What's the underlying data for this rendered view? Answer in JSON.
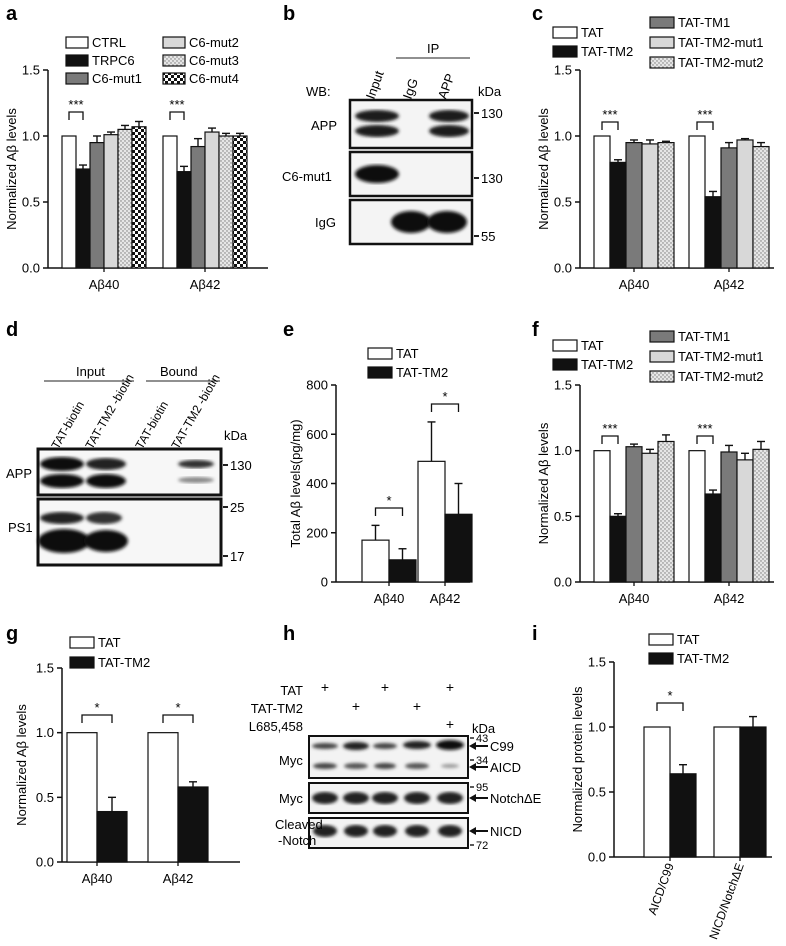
{
  "panels": {
    "a": {
      "letter": "a",
      "ylabel": "Normalized Aβ levels",
      "yticks": [
        "0.0",
        "0.5",
        "1.0",
        "1.5"
      ],
      "ylim": [
        0,
        1.5
      ],
      "groups": [
        "Aβ40",
        "Aβ42"
      ],
      "legend": [
        {
          "label": "CTRL",
          "fill": "white"
        },
        {
          "label": "TRPC6",
          "fill": "black"
        },
        {
          "label": "C6-mut1",
          "fill": "darkgray"
        },
        {
          "label": "C6-mut2",
          "fill": "lightgray"
        },
        {
          "label": "C6-mut3",
          "fill": "dots"
        },
        {
          "label": "C6-mut4",
          "fill": "checker"
        }
      ],
      "sig": [
        "***",
        "***"
      ]
    },
    "b": {
      "letter": "b",
      "ip_label": "IP",
      "wb_label": "WB:",
      "lanes": [
        "Input",
        "IgG",
        "APP"
      ],
      "kda_label": "kDa",
      "rows": [
        "APP",
        "C6-mut1",
        "IgG"
      ],
      "markers": [
        "130",
        "130",
        "55"
      ]
    },
    "c": {
      "letter": "c",
      "ylabel": "Normalized Aβ levels",
      "yticks": [
        "0.0",
        "0.5",
        "1.0",
        "1.5"
      ],
      "ylim": [
        0,
        1.5
      ],
      "groups": [
        "Aβ40",
        "Aβ42"
      ],
      "legend": [
        {
          "label": "TAT",
          "fill": "white"
        },
        {
          "label": "TAT-TM2",
          "fill": "black"
        },
        {
          "label": "TAT-TM1",
          "fill": "darkgray"
        },
        {
          "label": "TAT-TM2-mut1",
          "fill": "lightgray"
        },
        {
          "label": "TAT-TM2-mut2",
          "fill": "dots"
        }
      ],
      "sig": [
        "***",
        "***"
      ]
    },
    "d": {
      "letter": "d",
      "headers": [
        "Input",
        "Bound"
      ],
      "lanes": [
        "TAT-biotin",
        "TAT-TM2 -biotin",
        "TAT-biotin",
        "TAT-TM2 -biotin"
      ],
      "kda_label": "kDa",
      "rows": [
        "APP",
        "PS1"
      ],
      "markers": [
        "130",
        "25",
        "17"
      ]
    },
    "e": {
      "letter": "e",
      "ylabel": "Total Aβ levels(pg/mg)",
      "yticks": [
        "0",
        "200",
        "400",
        "600",
        "800"
      ],
      "ylim": [
        0,
        800
      ],
      "groups": [
        "Aβ40",
        "Aβ42"
      ],
      "legend": [
        {
          "label": "TAT",
          "fill": "white"
        },
        {
          "label": "TAT-TM2",
          "fill": "black"
        }
      ],
      "sig": [
        "*",
        "*"
      ]
    },
    "f": {
      "letter": "f",
      "ylabel": "Normalized Aβ levels",
      "yticks": [
        "0.0",
        "0.5",
        "1.0",
        "1.5"
      ],
      "ylim": [
        0,
        1.5
      ],
      "groups": [
        "Aβ40",
        "Aβ42"
      ],
      "legend": [
        {
          "label": "TAT",
          "fill": "white"
        },
        {
          "label": "TAT-TM2",
          "fill": "black"
        },
        {
          "label": "TAT-TM1",
          "fill": "darkgray"
        },
        {
          "label": "TAT-TM2-mut1",
          "fill": "lightgray"
        },
        {
          "label": "TAT-TM2-mut2",
          "fill": "dots"
        }
      ],
      "sig": [
        "***",
        "***"
      ]
    },
    "g": {
      "letter": "g",
      "ylabel": "Normalized Aβ levels",
      "yticks": [
        "0.0",
        "0.5",
        "1.0",
        "1.5"
      ],
      "ylim": [
        0,
        1.5
      ],
      "groups": [
        "Aβ40",
        "Aβ42"
      ],
      "legend": [
        {
          "label": "TAT",
          "fill": "white"
        },
        {
          "label": "TAT-TM2",
          "fill": "black"
        }
      ],
      "sig": [
        "*",
        "*"
      ]
    },
    "h": {
      "letter": "h",
      "treatments": [
        "TAT",
        "TAT-TM2",
        "L685,458"
      ],
      "plus": "+",
      "kda_label": "kDa",
      "rows": [
        "Myc",
        "Myc",
        "Cleaved -Notch"
      ],
      "markers": [
        "43",
        "34",
        "95",
        "72"
      ],
      "arrows": [
        "C99",
        "AICD",
        "NotchΔE",
        "NICD"
      ]
    },
    "i": {
      "letter": "i",
      "ylabel": "Normalized protein levels",
      "yticks": [
        "0.0",
        "0.5",
        "1.0",
        "1.5"
      ],
      "ylim": [
        0,
        1.5
      ],
      "groups": [
        "AICD/C99",
        "NICD/NotchΔE"
      ],
      "legend": [
        {
          "label": "TAT",
          "fill": "white"
        },
        {
          "label": "TAT-TM2",
          "fill": "black"
        }
      ],
      "sig": [
        "*"
      ]
    }
  },
  "chart_data": [
    {
      "panel": "a",
      "type": "bar",
      "categories": [
        "Aβ40",
        "Aβ42"
      ],
      "ylabel": "Normalized Aβ levels",
      "ylim": [
        0,
        1.5
      ],
      "series": [
        {
          "name": "CTRL",
          "values": [
            1.0,
            1.0
          ],
          "errors": [
            0,
            0
          ]
        },
        {
          "name": "TRPC6",
          "values": [
            0.75,
            0.73
          ],
          "errors": [
            0.03,
            0.04
          ]
        },
        {
          "name": "C6-mut1",
          "values": [
            0.95,
            0.92
          ],
          "errors": [
            0.05,
            0.06
          ]
        },
        {
          "name": "C6-mut2",
          "values": [
            1.01,
            1.03
          ],
          "errors": [
            0.02,
            0.03
          ]
        },
        {
          "name": "C6-mut3",
          "values": [
            1.05,
            1.0
          ],
          "errors": [
            0.03,
            0.02
          ]
        },
        {
          "name": "C6-mut4",
          "values": [
            1.07,
            1.0
          ],
          "errors": [
            0.04,
            0.02
          ]
        }
      ]
    },
    {
      "panel": "c",
      "type": "bar",
      "categories": [
        "Aβ40",
        "Aβ42"
      ],
      "ylabel": "Normalized Aβ levels",
      "ylim": [
        0,
        1.5
      ],
      "series": [
        {
          "name": "TAT",
          "values": [
            1.0,
            1.0
          ],
          "errors": [
            0,
            0
          ]
        },
        {
          "name": "TAT-TM2",
          "values": [
            0.8,
            0.54
          ],
          "errors": [
            0.02,
            0.04
          ]
        },
        {
          "name": "TAT-TM1",
          "values": [
            0.95,
            0.91
          ],
          "errors": [
            0.02,
            0.04
          ]
        },
        {
          "name": "TAT-TM2-mut1",
          "values": [
            0.94,
            0.97
          ],
          "errors": [
            0.03,
            0.01
          ]
        },
        {
          "name": "TAT-TM2-mut2",
          "values": [
            0.95,
            0.92
          ],
          "errors": [
            0.01,
            0.03
          ]
        }
      ]
    },
    {
      "panel": "e",
      "type": "bar",
      "categories": [
        "Aβ40",
        "Aβ42"
      ],
      "ylabel": "Total Aβ levels(pg/mg)",
      "ylim": [
        0,
        800
      ],
      "series": [
        {
          "name": "TAT",
          "values": [
            170,
            490
          ],
          "errors": [
            60,
            160
          ]
        },
        {
          "name": "TAT-TM2",
          "values": [
            90,
            275
          ],
          "errors": [
            45,
            125
          ]
        }
      ]
    },
    {
      "panel": "f",
      "type": "bar",
      "categories": [
        "Aβ40",
        "Aβ42"
      ],
      "ylabel": "Normalized Aβ levels",
      "ylim": [
        0,
        1.5
      ],
      "series": [
        {
          "name": "TAT",
          "values": [
            1.0,
            1.0
          ],
          "errors": [
            0,
            0
          ]
        },
        {
          "name": "TAT-TM2",
          "values": [
            0.5,
            0.67
          ],
          "errors": [
            0.02,
            0.03
          ]
        },
        {
          "name": "TAT-TM1",
          "values": [
            1.03,
            0.99
          ],
          "errors": [
            0.02,
            0.05
          ]
        },
        {
          "name": "TAT-TM2-mut1",
          "values": [
            0.98,
            0.93
          ],
          "errors": [
            0.03,
            0.05
          ]
        },
        {
          "name": "TAT-TM2-mut2",
          "values": [
            1.07,
            1.01
          ],
          "errors": [
            0.05,
            0.06
          ]
        }
      ]
    },
    {
      "panel": "g",
      "type": "bar",
      "categories": [
        "Aβ40",
        "Aβ42"
      ],
      "ylabel": "Normalized Aβ levels",
      "ylim": [
        0,
        1.5
      ],
      "series": [
        {
          "name": "TAT",
          "values": [
            1.0,
            1.0
          ],
          "errors": [
            0,
            0
          ]
        },
        {
          "name": "TAT-TM2",
          "values": [
            0.39,
            0.58
          ],
          "errors": [
            0.11,
            0.04
          ]
        }
      ]
    },
    {
      "panel": "i",
      "type": "bar",
      "categories": [
        "AICD/C99",
        "NICD/NotchΔE"
      ],
      "ylabel": "Normalized protein levels",
      "ylim": [
        0,
        1.5
      ],
      "series": [
        {
          "name": "TAT",
          "values": [
            1.0,
            1.0
          ],
          "errors": [
            0,
            0
          ]
        },
        {
          "name": "TAT-TM2",
          "values": [
            0.64,
            1.0
          ],
          "errors": [
            0.07,
            0.08
          ]
        }
      ]
    }
  ]
}
